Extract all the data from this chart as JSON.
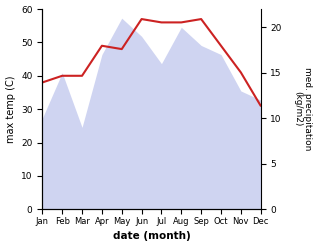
{
  "months": [
    "Jan",
    "Feb",
    "Mar",
    "Apr",
    "May",
    "Jun",
    "Jul",
    "Aug",
    "Sep",
    "Oct",
    "Nov",
    "Dec"
  ],
  "x": [
    0,
    1,
    2,
    3,
    4,
    5,
    6,
    7,
    8,
    9,
    10,
    11
  ],
  "temp_data": [
    38,
    40,
    40,
    49,
    48,
    57,
    56,
    56,
    57,
    49,
    41,
    31
  ],
  "precip_data": [
    10,
    15,
    9,
    17,
    21,
    19,
    16,
    20,
    18,
    17,
    13,
    12
  ],
  "temp_ylim": [
    0,
    60
  ],
  "precip_ylim": [
    0,
    22
  ],
  "temp_yticks": [
    0,
    10,
    20,
    30,
    40,
    50,
    60
  ],
  "precip_yticks": [
    0,
    5,
    10,
    15,
    20
  ],
  "xlabel": "date (month)",
  "ylabel_left": "max temp (C)",
  "ylabel_right": "med. precipitation\n(kg/m2)",
  "fill_color": "#b0b8e8",
  "fill_alpha": 0.6,
  "line_color": "#cc2222",
  "line_width": 1.5,
  "bg_color": "#ffffff",
  "fig_width": 3.18,
  "fig_height": 2.47,
  "dpi": 100
}
